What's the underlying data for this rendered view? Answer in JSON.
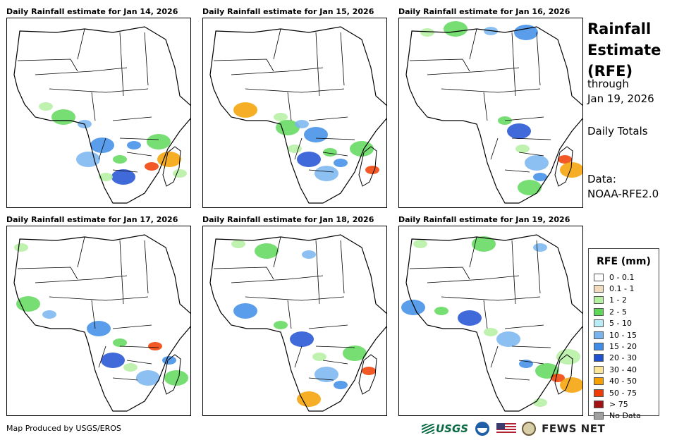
{
  "panels": [
    {
      "title": "Daily Rainfall estimate for Jan 14, 2026"
    },
    {
      "title": "Daily Rainfall estimate for Jan 15, 2026"
    },
    {
      "title": "Daily Rainfall estimate for Jan 16, 2026"
    },
    {
      "title": "Daily Rainfall estimate for Jan 17, 2026"
    },
    {
      "title": "Daily Rainfall estimate for Jan 18, 2026"
    },
    {
      "title": "Daily Rainfall estimate for Jan 19, 2026"
    }
  ],
  "sidebar": {
    "title_line1": "Rainfall",
    "title_line2": "Estimate",
    "title_line3": "(RFE)",
    "through": "through",
    "date": "Jan 19, 2026",
    "daily_totals": "Daily Totals",
    "data_label": "Data:",
    "data_source": "NOAA-RFE2.0"
  },
  "legend": {
    "title": "RFE (mm)",
    "items": [
      {
        "label": "0 - 0.1",
        "color": "#ffffff"
      },
      {
        "label": "0.1 - 1",
        "color": "#f0dcbc"
      },
      {
        "label": "1 - 2",
        "color": "#b4f0a0"
      },
      {
        "label": "2 - 5",
        "color": "#5fd85a"
      },
      {
        "label": "5 - 10",
        "color": "#b8ecf4"
      },
      {
        "label": "10 - 15",
        "color": "#78b4f0"
      },
      {
        "label": "15 - 20",
        "color": "#3c8ce8"
      },
      {
        "label": "20 - 30",
        "color": "#1e50d2"
      },
      {
        "label": "30 - 40",
        "color": "#fae696"
      },
      {
        "label": "40 - 50",
        "color": "#f5a000"
      },
      {
        "label": "50 - 75",
        "color": "#f03c00"
      },
      {
        "label": "> 75",
        "color": "#a01414"
      },
      {
        "label": "No Data",
        "color": "#a0a0a0"
      }
    ]
  },
  "footer": {
    "credit": "Map Produced by USGS/EROS",
    "usgs_logo": "USGS",
    "fews_logo": "FEWS NET"
  }
}
